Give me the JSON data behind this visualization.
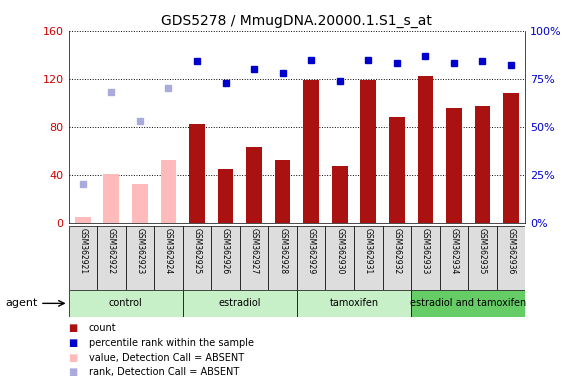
{
  "title": "GDS5278 / MmugDNA.20000.1.S1_s_at",
  "samples": [
    "GSM362921",
    "GSM362922",
    "GSM362923",
    "GSM362924",
    "GSM362925",
    "GSM362926",
    "GSM362927",
    "GSM362928",
    "GSM362929",
    "GSM362930",
    "GSM362931",
    "GSM362932",
    "GSM362933",
    "GSM362934",
    "GSM362935",
    "GSM362936"
  ],
  "count_values": [
    5,
    41,
    32,
    52,
    82,
    45,
    63,
    52,
    119,
    47,
    119,
    88,
    122,
    96,
    97,
    108
  ],
  "count_absent": [
    true,
    true,
    true,
    true,
    false,
    false,
    false,
    false,
    false,
    false,
    false,
    false,
    false,
    false,
    false,
    false
  ],
  "rank_values": [
    20,
    68,
    53,
    70,
    84,
    73,
    80,
    78,
    85,
    74,
    85,
    83,
    87,
    83,
    84,
    82
  ],
  "rank_absent": [
    true,
    true,
    true,
    true,
    false,
    false,
    false,
    false,
    false,
    false,
    false,
    false,
    false,
    false,
    false,
    false
  ],
  "groups": [
    {
      "label": "control",
      "start": 0,
      "end": 4,
      "color": "#c8f0c8"
    },
    {
      "label": "estradiol",
      "start": 4,
      "end": 8,
      "color": "#c8f0c8"
    },
    {
      "label": "tamoxifen",
      "start": 8,
      "end": 12,
      "color": "#c8f0c8"
    },
    {
      "label": "estradiol and tamoxifen",
      "start": 12,
      "end": 16,
      "color": "#66cc66"
    }
  ],
  "ylim_left": [
    0,
    160
  ],
  "ylim_right": [
    0,
    100
  ],
  "yticks_left": [
    0,
    40,
    80,
    120,
    160
  ],
  "yticks_right": [
    0,
    25,
    50,
    75,
    100
  ],
  "yticklabels_right": [
    "0%",
    "25%",
    "50%",
    "75%",
    "100%"
  ],
  "bar_color_present": "#aa1111",
  "bar_color_absent": "#ffbbbb",
  "rank_color_present": "#0000cc",
  "rank_color_absent": "#aaaadd",
  "bar_width": 0.55,
  "background_color": "#ffffff",
  "plot_bg_color": "#ffffff",
  "agent_label": "agent"
}
